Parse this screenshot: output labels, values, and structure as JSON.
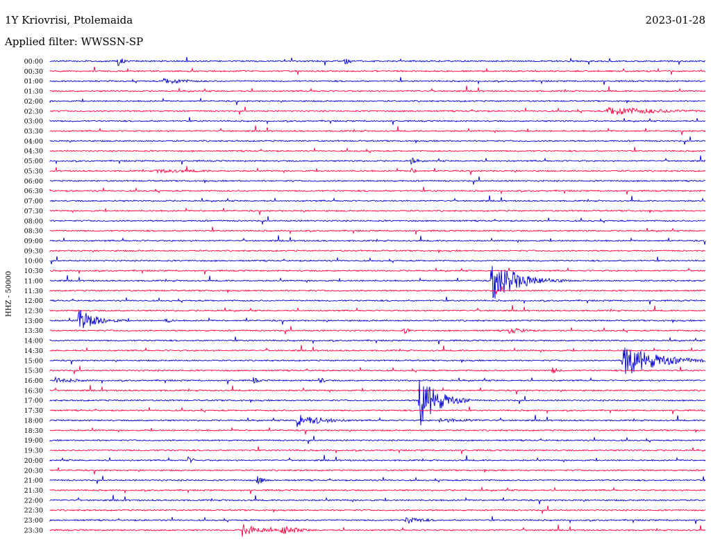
{
  "header": {
    "station": "1Y Kriovrisi, Ptolemaida",
    "date": "2023-01-28",
    "filter": "Applied filter: WWSSN-SP"
  },
  "channel_label": "HHZ - 50000",
  "colors": {
    "blue": "#0000cc",
    "red": "#ff0040"
  },
  "chart_data": {
    "type": "line",
    "row_labels": [
      "00:00",
      "00:30",
      "01:00",
      "01:30",
      "02:00",
      "02:30",
      "03:00",
      "03:30",
      "04:00",
      "04:30",
      "05:00",
      "05:30",
      "06:00",
      "06:30",
      "07:00",
      "07:30",
      "08:00",
      "08:30",
      "09:00",
      "09:30",
      "10:00",
      "10:30",
      "11:00",
      "11:30",
      "12:00",
      "12:30",
      "13:00",
      "13:30",
      "14:00",
      "14:30",
      "15:00",
      "15:30",
      "16:00",
      "16:30",
      "17:00",
      "17:30",
      "18:00",
      "18:30",
      "19:00",
      "19:30",
      "20:00",
      "20:30",
      "21:00",
      "21:30",
      "22:00",
      "22:30",
      "23:00",
      "23:30"
    ],
    "row_colors": [
      "blue",
      "red"
    ],
    "minutes_per_row": 30,
    "events": [
      {
        "row": 0,
        "minute": 3.1,
        "amp": 8
      },
      {
        "row": 0,
        "minute": 13.5,
        "amp": 6
      },
      {
        "row": 2,
        "minute": 5.2,
        "amp": 5,
        "dur": 1.2
      },
      {
        "row": 5,
        "minute": 25.5,
        "amp": 7,
        "dur": 2.5
      },
      {
        "row": 10,
        "minute": 16.5,
        "amp": 7
      },
      {
        "row": 11,
        "minute": 4.8,
        "amp": 3,
        "dur": 3.0
      },
      {
        "row": 11,
        "minute": 16.5,
        "amp": 5
      },
      {
        "row": 22,
        "minute": 20.2,
        "amp": 30,
        "dur": 1.2
      },
      {
        "row": 26,
        "minute": 1.3,
        "amp": 18,
        "dur": 0.8
      },
      {
        "row": 26,
        "minute": 5.3,
        "amp": 5
      },
      {
        "row": 27,
        "minute": 16.2,
        "amp": 5
      },
      {
        "row": 27,
        "minute": 21.0,
        "amp": 5,
        "dur": 0.8
      },
      {
        "row": 30,
        "minute": 26.2,
        "amp": 25,
        "dur": 1.5
      },
      {
        "row": 31,
        "minute": 23.0,
        "amp": 6
      },
      {
        "row": 32,
        "minute": 0.2,
        "amp": 5,
        "dur": 1.0
      },
      {
        "row": 32,
        "minute": 9.3,
        "amp": 6
      },
      {
        "row": 32,
        "minute": 12.3,
        "amp": 6
      },
      {
        "row": 34,
        "minute": 16.9,
        "amp": 40,
        "dur": 0.8
      },
      {
        "row": 36,
        "minute": 11.3,
        "amp": 10,
        "dur": 1.2
      },
      {
        "row": 36,
        "minute": 17.8,
        "amp": 3,
        "dur": 2.5
      },
      {
        "row": 40,
        "minute": 6.3,
        "amp": 6
      },
      {
        "row": 42,
        "minute": 9.5,
        "amp": 8
      },
      {
        "row": 46,
        "minute": 16.3,
        "amp": 6,
        "dur": 0.8
      },
      {
        "row": 47,
        "minute": 8.8,
        "amp": 10,
        "dur": 0.8
      },
      {
        "row": 47,
        "minute": 10.5,
        "amp": 8,
        "dur": 0.8
      }
    ]
  }
}
